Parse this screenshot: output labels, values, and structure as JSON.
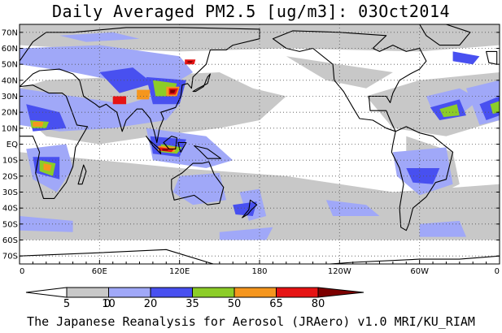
{
  "title": "Daily Averaged PM2.5 [ug/m3]: 03Oct2014",
  "credit": "The Japanese Reanalysis for Aerosol (JRAero) v1.0 MRI/KU_RIAM",
  "map": {
    "variable": "PM2.5",
    "units": "ug/m3",
    "date": "03Oct2014",
    "projection": "equirectangular",
    "lon_range": [
      0,
      360
    ],
    "lat_range": [
      -75,
      75
    ],
    "grid": "dotted",
    "lat_labels": [
      "70N",
      "60N",
      "50N",
      "40N",
      "30N",
      "20N",
      "10N",
      "EQ",
      "10S",
      "20S",
      "30S",
      "40S",
      "50S",
      "60S",
      "70S"
    ],
    "lat_values": [
      70,
      60,
      50,
      40,
      30,
      20,
      10,
      0,
      -10,
      -20,
      -30,
      -40,
      -50,
      -60,
      -70
    ],
    "lon_labels": [
      "0",
      "60E",
      "120E",
      "180",
      "120W",
      "60W",
      "0"
    ],
    "lon_values": [
      0,
      60,
      120,
      180,
      240,
      300,
      360
    ]
  },
  "colorbar": {
    "levels": [
      "0",
      "5",
      "10",
      "20",
      "35",
      "50",
      "65",
      "80"
    ],
    "colors": [
      "#ffffff",
      "#c8c8c8",
      "#a0a8f8",
      "#4850f0",
      "#8ccd28",
      "#f5961e",
      "#e61414",
      "#7d0000"
    ]
  }
}
